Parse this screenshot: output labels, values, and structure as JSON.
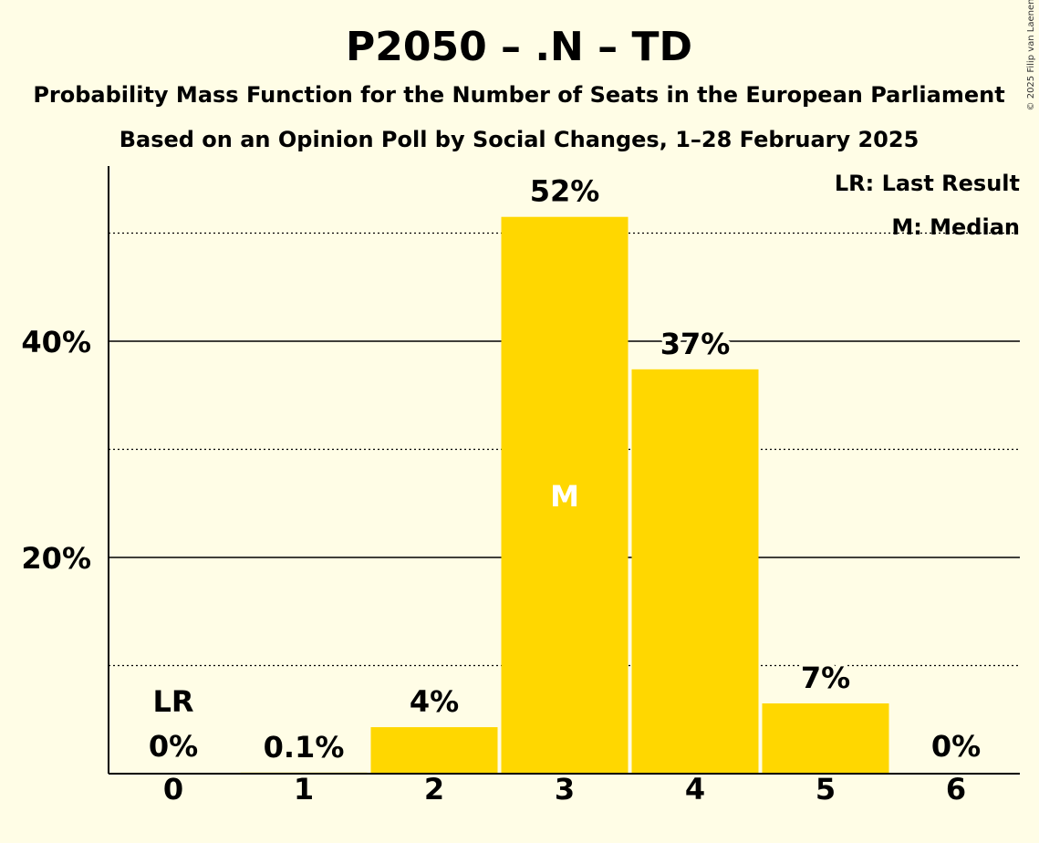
{
  "chart_data": {
    "type": "bar",
    "title": "P2050 – .N – TD",
    "subtitle_1": "Probability Mass Function for the Number of Seats in the European Parliament",
    "subtitle_2": "Based on an Opinion Poll by Social Changes, 1–28 February 2025",
    "copyright": "© 2025 Filip van Laenen",
    "categories": [
      "0",
      "1",
      "2",
      "3",
      "4",
      "5",
      "6"
    ],
    "values": [
      0,
      0.1,
      4.3,
      51.5,
      37.4,
      6.5,
      0
    ],
    "value_labels": [
      "0%",
      "0.1%",
      "4%",
      "52%",
      "37%",
      "7%",
      "0%"
    ],
    "ylim": [
      0,
      56
    ],
    "y_ticks": [
      {
        "value": 20,
        "label": "20%"
      },
      {
        "value": 40,
        "label": "40%"
      }
    ],
    "minor_gridlines": [
      10,
      30,
      50
    ],
    "bar_color": "#FFD700",
    "last_result": {
      "category": "0",
      "label": "LR"
    },
    "median": {
      "category": "3",
      "label": "M"
    },
    "legend": {
      "position": "top-right",
      "items": [
        "LR: Last Result",
        "M: Median"
      ]
    }
  }
}
